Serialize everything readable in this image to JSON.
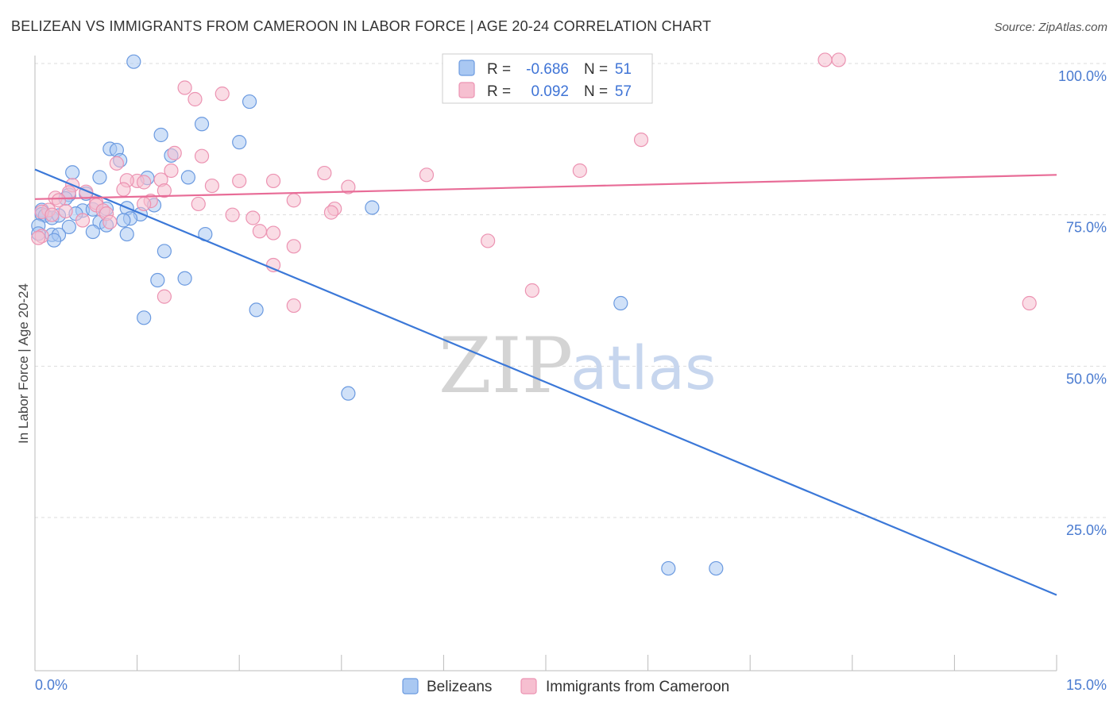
{
  "chart_data": {
    "type": "scatter",
    "title": "BELIZEAN VS IMMIGRANTS FROM CAMEROON IN LABOR FORCE | AGE 20-24 CORRELATION CHART",
    "source": "Source: ZipAtlas.com",
    "ylabel": "In Labor Force | Age 20-24",
    "xlim": [
      0,
      15
    ],
    "ylim": [
      0,
      105
    ],
    "x_tick_labels": [
      {
        "value": 0,
        "label": "0.0%"
      },
      {
        "value": 15,
        "label": "15.0%"
      }
    ],
    "y_tick_labels": [
      {
        "value": 100,
        "label": "100.0%"
      },
      {
        "value": 75,
        "label": "75.0%"
      },
      {
        "value": 50,
        "label": "50.0%"
      },
      {
        "value": 25,
        "label": "25.0%"
      }
    ],
    "legend": {
      "r_label": "R =",
      "n_label": "N =",
      "entries": [
        {
          "name": "Belizeans",
          "r": "-0.686",
          "n": "51"
        },
        {
          "name": "Immigrants from Cameroon",
          "r": "0.092",
          "n": "57"
        }
      ]
    },
    "watermark": {
      "zip": "ZIP",
      "atlas": "atlas"
    },
    "colors": {
      "blue_fill": "#a9c8f2",
      "blue_stroke": "#6b9ae0",
      "blue_line": "#3b78d8",
      "pink_fill": "#f6bfd0",
      "pink_stroke": "#ec93b2",
      "pink_line": "#e86c97",
      "grid": "#dddddd"
    },
    "series": [
      {
        "name": "Belizeans",
        "trend": {
          "x": [
            0,
            15
          ],
          "y": [
            82.5,
            12.2
          ]
        },
        "points": [
          [
            1.45,
            100.3
          ],
          [
            3.15,
            93.7
          ],
          [
            2.45,
            90.0
          ],
          [
            1.85,
            88.2
          ],
          [
            3.0,
            87.0
          ],
          [
            1.1,
            85.9
          ],
          [
            1.2,
            85.7
          ],
          [
            1.25,
            84.0
          ],
          [
            2.0,
            84.8
          ],
          [
            0.55,
            82.0
          ],
          [
            0.95,
            81.2
          ],
          [
            1.65,
            81.1
          ],
          [
            2.25,
            81.2
          ],
          [
            0.5,
            78.3
          ],
          [
            0.75,
            78.5
          ],
          [
            0.45,
            77.7
          ],
          [
            1.75,
            76.6
          ],
          [
            4.95,
            76.2
          ],
          [
            0.1,
            75.8
          ],
          [
            0.7,
            75.7
          ],
          [
            0.85,
            75.9
          ],
          [
            1.05,
            76.0
          ],
          [
            1.35,
            76.1
          ],
          [
            0.1,
            75.1
          ],
          [
            0.15,
            74.9
          ],
          [
            0.25,
            74.5
          ],
          [
            0.35,
            74.9
          ],
          [
            0.6,
            75.2
          ],
          [
            1.55,
            75.1
          ],
          [
            1.4,
            74.4
          ],
          [
            0.05,
            73.2
          ],
          [
            0.95,
            73.8
          ],
          [
            1.05,
            73.3
          ],
          [
            1.3,
            74.1
          ],
          [
            0.5,
            73.0
          ],
          [
            0.85,
            72.2
          ],
          [
            0.05,
            71.9
          ],
          [
            0.25,
            71.7
          ],
          [
            0.35,
            71.7
          ],
          [
            1.35,
            71.8
          ],
          [
            2.5,
            71.8
          ],
          [
            0.28,
            70.8
          ],
          [
            1.9,
            69.0
          ],
          [
            2.2,
            64.5
          ],
          [
            1.8,
            64.2
          ],
          [
            8.6,
            60.4
          ],
          [
            3.25,
            59.3
          ],
          [
            1.6,
            58.0
          ],
          [
            4.6,
            45.5
          ],
          [
            9.3,
            16.6
          ],
          [
            10.0,
            16.6
          ]
        ]
      },
      {
        "name": "Immigrants from Cameroon",
        "trend": {
          "x": [
            0,
            15
          ],
          "y": [
            77.6,
            81.6
          ]
        },
        "points": [
          [
            11.6,
            100.6
          ],
          [
            11.8,
            100.6
          ],
          [
            2.2,
            96.0
          ],
          [
            2.75,
            95.0
          ],
          [
            2.35,
            94.1
          ],
          [
            8.9,
            87.4
          ],
          [
            2.05,
            85.2
          ],
          [
            2.45,
            84.7
          ],
          [
            1.2,
            83.5
          ],
          [
            8.0,
            82.3
          ],
          [
            2.0,
            82.3
          ],
          [
            4.25,
            81.9
          ],
          [
            5.75,
            81.6
          ],
          [
            1.5,
            80.6
          ],
          [
            1.85,
            80.8
          ],
          [
            3.5,
            80.6
          ],
          [
            3.0,
            80.6
          ],
          [
            1.35,
            80.7
          ],
          [
            1.6,
            80.4
          ],
          [
            0.55,
            79.9
          ],
          [
            2.6,
            79.8
          ],
          [
            4.6,
            79.6
          ],
          [
            1.3,
            79.2
          ],
          [
            1.9,
            79.0
          ],
          [
            0.75,
            78.8
          ],
          [
            0.5,
            78.7
          ],
          [
            0.3,
            77.8
          ],
          [
            0.35,
            77.4
          ],
          [
            3.8,
            77.4
          ],
          [
            1.7,
            77.3
          ],
          [
            0.9,
            77.0
          ],
          [
            2.4,
            76.8
          ],
          [
            0.9,
            76.6
          ],
          [
            1.6,
            76.8
          ],
          [
            4.4,
            76.0
          ],
          [
            4.35,
            75.4
          ],
          [
            0.2,
            75.8
          ],
          [
            0.1,
            75.5
          ],
          [
            0.25,
            75.0
          ],
          [
            0.45,
            75.6
          ],
          [
            1.0,
            75.7
          ],
          [
            1.05,
            75.2
          ],
          [
            2.9,
            75.0
          ],
          [
            3.2,
            74.5
          ],
          [
            1.1,
            73.8
          ],
          [
            0.7,
            74.1
          ],
          [
            3.3,
            72.3
          ],
          [
            3.5,
            72.0
          ],
          [
            0.1,
            71.5
          ],
          [
            6.65,
            70.7
          ],
          [
            3.8,
            69.8
          ],
          [
            3.5,
            66.7
          ],
          [
            7.3,
            62.5
          ],
          [
            1.9,
            61.5
          ],
          [
            14.6,
            60.4
          ],
          [
            3.8,
            60.0
          ],
          [
            0.05,
            71.2
          ]
        ]
      }
    ]
  }
}
